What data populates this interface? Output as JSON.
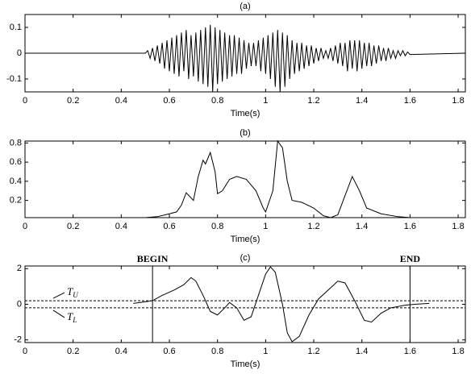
{
  "chart_data": [
    {
      "type": "line",
      "title": "(a)",
      "x_label": "Time(s)",
      "color": "#000000",
      "xlim": [
        0,
        1.83
      ],
      "ylim": [
        -0.15,
        0.15
      ],
      "xticks": [
        0,
        0.2,
        0.4,
        0.6,
        0.8,
        1,
        1.2,
        1.4,
        1.6,
        1.8
      ],
      "yticks": [
        -0.1,
        0,
        0.1
      ],
      "x": [
        0,
        0.5,
        0.51,
        0.52,
        0.53,
        0.54,
        0.55,
        0.56,
        0.57,
        0.58,
        0.59,
        0.6,
        0.61,
        0.62,
        0.63,
        0.64,
        0.65,
        0.66,
        0.67,
        0.68,
        0.69,
        0.7,
        0.71,
        0.72,
        0.73,
        0.74,
        0.75,
        0.76,
        0.77,
        0.78,
        0.79,
        0.8,
        0.81,
        0.82,
        0.83,
        0.84,
        0.85,
        0.86,
        0.87,
        0.88,
        0.89,
        0.9,
        0.91,
        0.92,
        0.93,
        0.94,
        0.95,
        0.96,
        0.97,
        0.98,
        0.99,
        1.0,
        1.01,
        1.02,
        1.03,
        1.04,
        1.05,
        1.06,
        1.07,
        1.08,
        1.09,
        1.1,
        1.11,
        1.12,
        1.13,
        1.14,
        1.15,
        1.16,
        1.17,
        1.18,
        1.19,
        1.2,
        1.21,
        1.22,
        1.23,
        1.24,
        1.25,
        1.26,
        1.27,
        1.28,
        1.29,
        1.3,
        1.31,
        1.32,
        1.33,
        1.34,
        1.35,
        1.36,
        1.37,
        1.38,
        1.39,
        1.4,
        1.41,
        1.42,
        1.43,
        1.44,
        1.45,
        1.46,
        1.47,
        1.48,
        1.49,
        1.5,
        1.51,
        1.52,
        1.53,
        1.54,
        1.55,
        1.56,
        1.57,
        1.58,
        1.59,
        1.6,
        1.83
      ],
      "values": [
        0,
        0,
        0.01,
        -0.02,
        0.02,
        -0.03,
        0.03,
        -0.04,
        0.04,
        -0.06,
        0.05,
        -0.07,
        0.06,
        -0.08,
        0.07,
        -0.09,
        0.08,
        -0.07,
        0.09,
        -0.1,
        0.07,
        -0.09,
        0.08,
        -0.11,
        0.09,
        -0.12,
        0.1,
        -0.13,
        0.11,
        -0.15,
        0.1,
        -0.12,
        0.09,
        -0.11,
        0.08,
        -0.1,
        0.07,
        -0.09,
        0.07,
        -0.08,
        0.06,
        -0.08,
        0.05,
        -0.06,
        0.04,
        -0.05,
        0.04,
        -0.05,
        0.05,
        -0.07,
        0.06,
        -0.08,
        0.07,
        -0.1,
        0.08,
        -0.13,
        0.09,
        -0.15,
        0.08,
        -0.13,
        0.07,
        -0.1,
        0.05,
        -0.08,
        0.04,
        -0.07,
        0.04,
        -0.06,
        0.03,
        -0.05,
        0.03,
        -0.04,
        0.02,
        -0.03,
        0.02,
        -0.02,
        0.01,
        -0.02,
        0.02,
        -0.03,
        0.03,
        -0.04,
        0.04,
        -0.05,
        0.04,
        -0.07,
        0.05,
        -0.06,
        0.05,
        -0.07,
        0.05,
        -0.06,
        0.04,
        -0.05,
        0.04,
        -0.05,
        0.03,
        -0.04,
        0.03,
        -0.03,
        0.02,
        -0.03,
        0.02,
        -0.02,
        0.01,
        -0.02,
        0.01,
        -0.01,
        0.01,
        -0.01,
        0.005,
        -0.005,
        0
      ]
    },
    {
      "type": "line",
      "title": "(b)",
      "x_label": "Time(s)",
      "color": "#000000",
      "xlim": [
        0,
        1.83
      ],
      "ylim": [
        0.02,
        0.82
      ],
      "xticks": [
        0,
        0.2,
        0.4,
        0.6,
        0.8,
        1,
        1.2,
        1.4,
        1.6,
        1.8
      ],
      "yticks": [
        0.2,
        0.4,
        0.6,
        0.8
      ],
      "x": [
        0,
        0.5,
        0.55,
        0.6,
        0.63,
        0.65,
        0.67,
        0.7,
        0.72,
        0.74,
        0.75,
        0.77,
        0.79,
        0.8,
        0.82,
        0.85,
        0.88,
        0.92,
        0.96,
        0.99,
        1.0,
        1.03,
        1.05,
        1.07,
        1.09,
        1.11,
        1.15,
        1.2,
        1.24,
        1.27,
        1.3,
        1.33,
        1.36,
        1.39,
        1.42,
        1.48,
        1.55,
        1.6,
        1.8
      ],
      "values": [
        0.02,
        0.02,
        0.03,
        0.06,
        0.08,
        0.15,
        0.28,
        0.2,
        0.45,
        0.62,
        0.58,
        0.7,
        0.5,
        0.27,
        0.3,
        0.42,
        0.45,
        0.42,
        0.3,
        0.12,
        0.08,
        0.3,
        0.82,
        0.75,
        0.4,
        0.2,
        0.18,
        0.12,
        0.04,
        0.02,
        0.05,
        0.25,
        0.45,
        0.3,
        0.12,
        0.06,
        0.03,
        0.02,
        0.02
      ]
    },
    {
      "type": "line",
      "title": "(c)",
      "x_label": "Time(s)",
      "color": "#000000",
      "xlim": [
        0,
        1.83
      ],
      "ylim": [
        -2.15,
        2.15
      ],
      "xticks": [
        0,
        0.2,
        0.4,
        0.6,
        0.8,
        1,
        1.2,
        1.4,
        1.6,
        1.8
      ],
      "yticks": [
        -2,
        0,
        2
      ],
      "x": [
        0.45,
        0.48,
        0.53,
        0.57,
        0.62,
        0.66,
        0.69,
        0.71,
        0.74,
        0.77,
        0.8,
        0.83,
        0.85,
        0.88,
        0.91,
        0.94,
        0.97,
        1.0,
        1.02,
        1.04,
        1.07,
        1.09,
        1.11,
        1.14,
        1.18,
        1.22,
        1.26,
        1.3,
        1.33,
        1.37,
        1.41,
        1.44,
        1.48,
        1.52,
        1.58,
        1.62,
        1.68
      ],
      "values": [
        0.05,
        0.1,
        0.2,
        0.5,
        0.8,
        1.1,
        1.5,
        1.3,
        0.5,
        -0.4,
        -0.6,
        -0.2,
        0.1,
        -0.2,
        -0.9,
        -0.7,
        0.5,
        1.7,
        2.1,
        1.8,
        0,
        -1.6,
        -2.1,
        -1.8,
        -0.6,
        0.3,
        0.8,
        1.3,
        1.2,
        0.2,
        -0.9,
        -1.0,
        -0.5,
        -0.2,
        -0.05,
        0,
        0.05
      ],
      "markers": [
        {
          "label": "BEGIN",
          "x": 0.53
        },
        {
          "label": "END",
          "x": 1.6
        }
      ],
      "thresholds": [
        {
          "label": "T",
          "subscript": "U",
          "value": 0.2
        },
        {
          "label": "T",
          "subscript": "L",
          "value": -0.2
        }
      ]
    }
  ]
}
